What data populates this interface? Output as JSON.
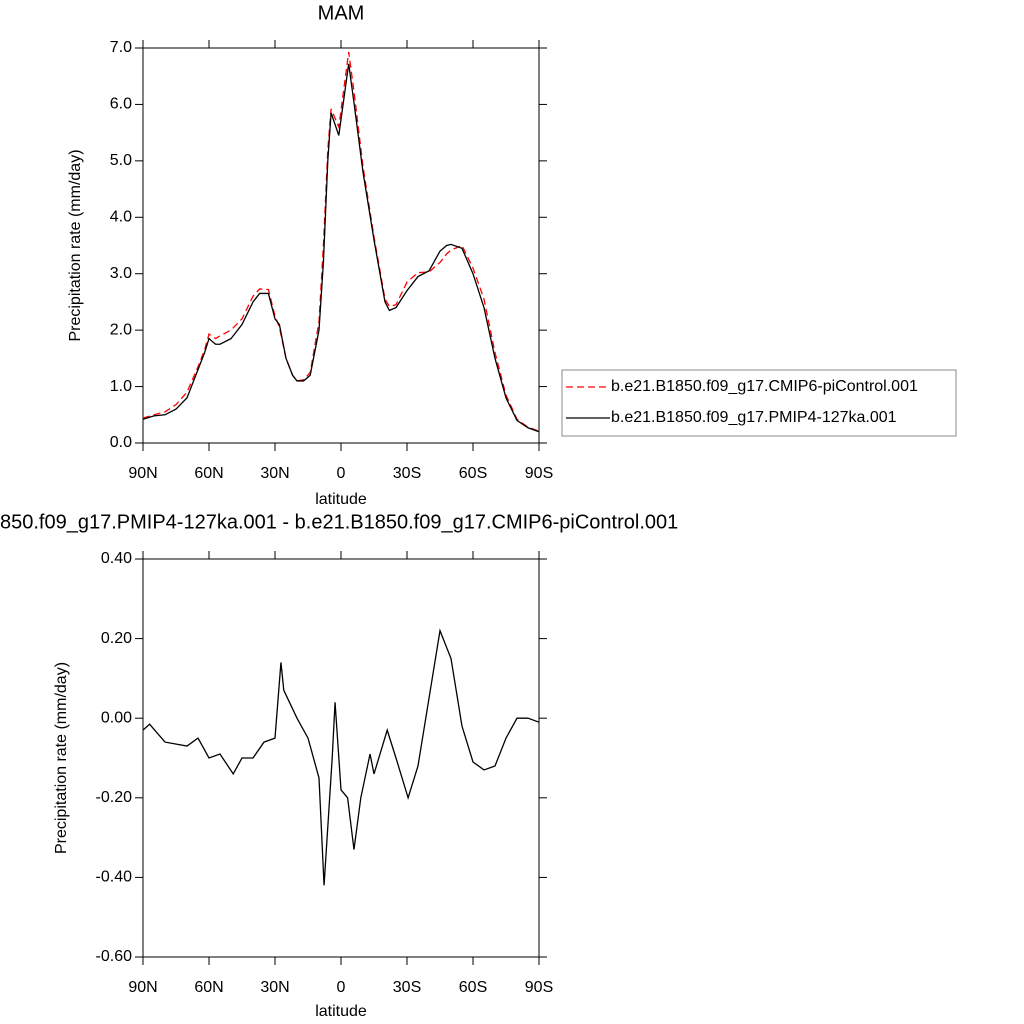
{
  "chart_data": [
    {
      "type": "line",
      "title": "MAM",
      "ylabel": "Precipitation rate (mm/day)",
      "xlabel": "latitude",
      "x": [
        90,
        85,
        80,
        75,
        70,
        65,
        62,
        60,
        57,
        55,
        50,
        45,
        40,
        37,
        33,
        30,
        28,
        25,
        22,
        20,
        17,
        14,
        10,
        8,
        6,
        4.5,
        1,
        -3.5,
        -6,
        -10,
        -15,
        -20,
        -22,
        -25,
        -30,
        -35,
        -40,
        -45,
        -48,
        -50,
        -55,
        -60,
        -65,
        -70,
        -75,
        -80,
        -85,
        -90
      ],
      "series": [
        {
          "name": "b.e21.B1850.f09_g17.CMIP6-piControl.001",
          "color": "#ff0000",
          "line_style": "dashed",
          "values": [
            0.44,
            0.5,
            0.55,
            0.68,
            0.9,
            1.35,
            1.65,
            1.93,
            1.85,
            1.9,
            2.0,
            2.2,
            2.6,
            2.73,
            2.72,
            2.25,
            2.05,
            1.5,
            1.2,
            1.1,
            1.12,
            1.25,
            2.15,
            3.5,
            5.2,
            5.92,
            5.6,
            6.93,
            6.2,
            4.9,
            3.65,
            2.55,
            2.42,
            2.45,
            2.85,
            3.02,
            3.03,
            3.2,
            3.35,
            3.42,
            3.5,
            3.1,
            2.55,
            1.6,
            0.85,
            0.42,
            0.28,
            0.21
          ]
        },
        {
          "name": "b.e21.B1850.f09_g17.PMIP4-127ka.001",
          "color": "#000000",
          "line_style": "solid",
          "values": [
            0.42,
            0.48,
            0.5,
            0.6,
            0.8,
            1.3,
            1.6,
            1.85,
            1.75,
            1.75,
            1.85,
            2.1,
            2.5,
            2.65,
            2.65,
            2.2,
            2.1,
            1.5,
            1.2,
            1.1,
            1.1,
            1.2,
            2.0,
            3.2,
            5.0,
            5.85,
            5.45,
            6.72,
            6.0,
            4.8,
            3.6,
            2.5,
            2.35,
            2.4,
            2.7,
            2.95,
            3.05,
            3.4,
            3.5,
            3.52,
            3.45,
            3.0,
            2.4,
            1.5,
            0.8,
            0.4,
            0.27,
            0.2
          ]
        }
      ],
      "xlim": [
        90,
        -90
      ],
      "xticks": [
        {
          "value": 90,
          "label": "90N"
        },
        {
          "value": 60,
          "label": "60N"
        },
        {
          "value": 30,
          "label": "30N"
        },
        0,
        {
          "value": -30,
          "label": "30S"
        },
        {
          "value": -60,
          "label": "60S"
        },
        {
          "value": -90,
          "label": "90S"
        }
      ],
      "ylim": [
        0,
        7
      ],
      "yticks": [
        {
          "value": 0,
          "label": "0.0"
        },
        {
          "value": 1,
          "label": "1.0"
        },
        {
          "value": 2,
          "label": "2.0"
        },
        {
          "value": 3,
          "label": "3.0"
        },
        {
          "value": 4,
          "label": "4.0"
        },
        {
          "value": 5,
          "label": "5.0"
        },
        {
          "value": 6,
          "label": "6.0"
        },
        {
          "value": 7,
          "label": "7.0"
        }
      ],
      "legend": "right"
    },
    {
      "type": "line",
      "title": "850.f09_g17.PMIP4-127ka.001 - b.e21.B1850.f09_g17.CMIP6-piControl.001",
      "ylabel": "Precipitation rate (mm/day)",
      "xlabel": "latitude",
      "x": [
        90,
        87,
        80,
        70,
        65,
        60,
        55,
        49,
        45,
        40,
        35,
        30,
        27.3,
        26,
        20,
        15,
        10,
        7.7,
        4,
        2.7,
        0,
        -3,
        -5.9,
        -9,
        -13.2,
        -15,
        -21,
        -25,
        -30.5,
        -35,
        -40,
        -45,
        -50,
        -55,
        -60,
        -65,
        -70,
        -75,
        -80,
        -85,
        -90
      ],
      "values": [
        -0.03,
        -0.015,
        -0.06,
        -0.07,
        -0.05,
        -0.1,
        -0.09,
        -0.14,
        -0.1,
        -0.1,
        -0.06,
        -0.05,
        0.14,
        0.07,
        0.0,
        -0.05,
        -0.15,
        -0.42,
        -0.1,
        0.04,
        -0.18,
        -0.2,
        -0.33,
        -0.2,
        -0.09,
        -0.14,
        -0.03,
        -0.1,
        -0.2,
        -0.12,
        0.05,
        0.22,
        0.15,
        -0.02,
        -0.11,
        -0.13,
        -0.12,
        -0.05,
        0.0,
        0.0,
        -0.01
      ],
      "color": "#000000",
      "xlim": [
        90,
        -90
      ],
      "xticks": [
        {
          "value": 90,
          "label": "90N"
        },
        {
          "value": 60,
          "label": "60N"
        },
        {
          "value": 30,
          "label": "30N"
        },
        0,
        {
          "value": -30,
          "label": "30S"
        },
        {
          "value": -60,
          "label": "60S"
        },
        {
          "value": -90,
          "label": "90S"
        }
      ],
      "ylim": [
        -0.6,
        0.4
      ],
      "yticks": [
        {
          "value": -0.6,
          "label": "-0.60"
        },
        {
          "value": -0.4,
          "label": "-0.40"
        },
        {
          "value": -0.2,
          "label": "-0.20"
        },
        {
          "value": 0,
          "label": "0.00"
        },
        {
          "value": 0.2,
          "label": "0.20"
        },
        {
          "value": 0.4,
          "label": "0.40"
        }
      ]
    }
  ]
}
